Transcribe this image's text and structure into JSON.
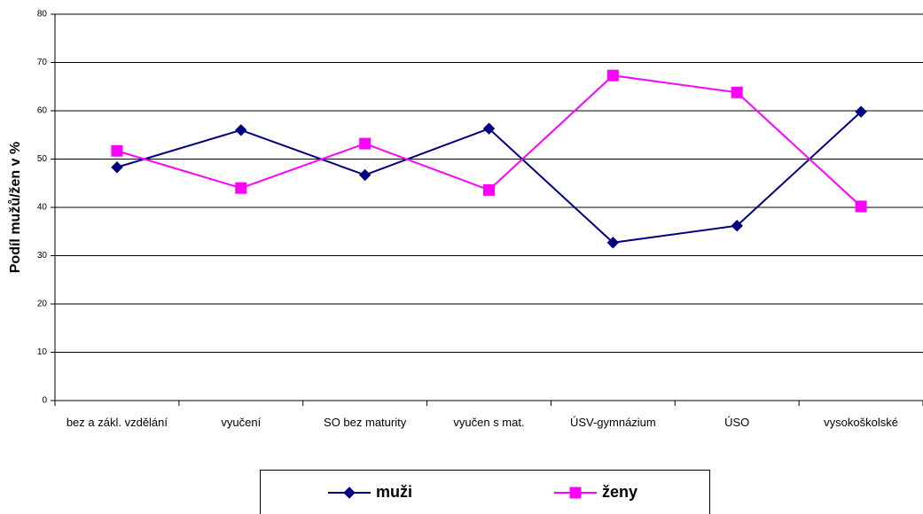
{
  "chart_data": {
    "type": "line",
    "y_label": "Podíl mužů/žen v %",
    "categories": [
      "bez a zákl. vzdělání",
      "vyučení",
      "SO bez maturity",
      "vyučen s mat.",
      "ÚSV-gymnázium",
      "ÚSO",
      "vysokoškolské"
    ],
    "series": [
      {
        "name": "muži",
        "color": "#000080",
        "marker": "diamond",
        "values": [
          48.3,
          56.0,
          46.7,
          56.3,
          32.7,
          36.2,
          59.8
        ]
      },
      {
        "name": "ženy",
        "color": "#ff00ff",
        "marker": "square",
        "values": [
          51.7,
          44.0,
          53.2,
          43.6,
          67.3,
          63.8,
          40.2
        ]
      }
    ],
    "ylim": [
      0,
      80
    ],
    "yticks": [
      0,
      10,
      20,
      30,
      40,
      50,
      60,
      70,
      80
    ],
    "grid": true,
    "legend": "bottom"
  }
}
